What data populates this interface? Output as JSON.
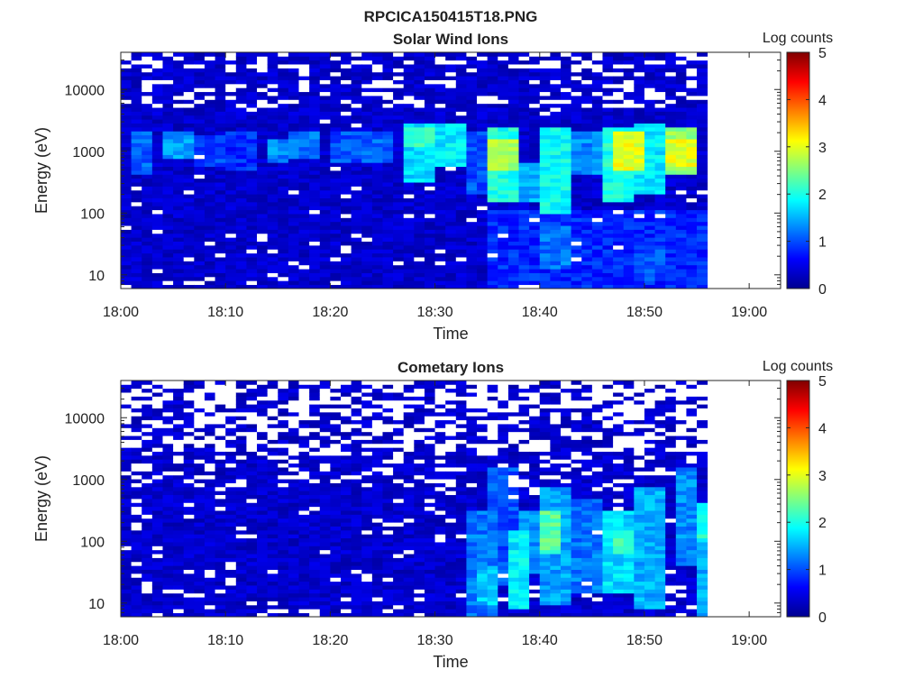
{
  "figure": {
    "title": "RPCICA150415T18.PNG"
  },
  "chart_data": [
    {
      "type": "heatmap",
      "title": "Solar Wind Ions",
      "xlabel": "Time",
      "ylabel": "Energy (eV)",
      "colorbar_label": "Log counts",
      "colorbar_ticks": [
        "0",
        "1",
        "2",
        "3",
        "4",
        "5"
      ],
      "x_ticks": [
        "18:00",
        "18:10",
        "18:20",
        "18:30",
        "18:40",
        "18:50",
        "19:00"
      ],
      "y_ticks": [
        "10",
        "100",
        "1000",
        "10000"
      ],
      "xlim": [
        "18:00",
        "19:03"
      ],
      "ylim": [
        6,
        40000
      ],
      "y_scale": "log",
      "clim": [
        0,
        5
      ],
      "data_end_time": "18:56",
      "background_level": 0.2,
      "features": [
        {
          "t0": "18:01",
          "t1": "18:02",
          "e0": 400,
          "e1": 2000,
          "level": 1.1
        },
        {
          "t0": "18:04",
          "t1": "18:06",
          "e0": 800,
          "e1": 2000,
          "level": 1.4
        },
        {
          "t0": "18:07",
          "t1": "18:09",
          "e0": 600,
          "e1": 1800,
          "level": 1.0
        },
        {
          "t0": "18:10",
          "t1": "18:12",
          "e0": 500,
          "e1": 2000,
          "level": 0.8
        },
        {
          "t0": "18:14",
          "t1": "18:15",
          "e0": 700,
          "e1": 1500,
          "level": 1.3
        },
        {
          "t0": "18:16",
          "t1": "18:18",
          "e0": 800,
          "e1": 2000,
          "level": 1.2
        },
        {
          "t0": "18:20",
          "t1": "18:22",
          "e0": 700,
          "e1": 2000,
          "level": 1.0
        },
        {
          "t0": "18:23",
          "t1": "18:25",
          "e0": 700,
          "e1": 2000,
          "level": 1.1
        },
        {
          "t0": "18:27",
          "t1": "18:29",
          "e0": 300,
          "e1": 3000,
          "level": 1.7
        },
        {
          "t0": "18:27",
          "t1": "18:29",
          "e0": 1200,
          "e1": 2500,
          "level": 2.1
        },
        {
          "t0": "18:30",
          "t1": "18:32",
          "e0": 600,
          "e1": 3000,
          "level": 1.8
        },
        {
          "t0": "18:33",
          "t1": "18:34",
          "e0": 200,
          "e1": 2000,
          "level": 1.0
        },
        {
          "t0": "18:35",
          "t1": "18:37",
          "e0": 150,
          "e1": 2500,
          "level": 2.0
        },
        {
          "t0": "18:35",
          "t1": "18:37",
          "e0": 500,
          "e1": 1500,
          "level": 2.7
        },
        {
          "t0": "18:37",
          "t1": "18:39",
          "e0": 150,
          "e1": 700,
          "level": 1.5
        },
        {
          "t0": "18:40",
          "t1": "18:42",
          "e0": 100,
          "e1": 2500,
          "level": 1.9
        },
        {
          "t0": "18:43",
          "t1": "18:45",
          "e0": 400,
          "e1": 2000,
          "level": 1.3
        },
        {
          "t0": "18:46",
          "t1": "18:48",
          "e0": 150,
          "e1": 2500,
          "level": 2.0
        },
        {
          "t0": "18:47",
          "t1": "18:49",
          "e0": 500,
          "e1": 2000,
          "level": 3.0
        },
        {
          "t0": "18:49",
          "t1": "18:51",
          "e0": 200,
          "e1": 3000,
          "level": 1.8
        },
        {
          "t0": "18:52",
          "t1": "18:54",
          "e0": 400,
          "e1": 2500,
          "level": 2.6
        },
        {
          "t0": "18:52",
          "t1": "18:54",
          "e0": 600,
          "e1": 1500,
          "level": 3.0
        },
        {
          "t0": "18:35",
          "t1": "18:56",
          "e0": 6,
          "e1": 120,
          "level": 0.8
        },
        {
          "t0": "18:40",
          "t1": "18:42",
          "e0": 12,
          "e1": 60,
          "level": 1.2
        },
        {
          "t0": "18:49",
          "t1": "18:51",
          "e0": 8,
          "e1": 30,
          "level": 1.0
        }
      ]
    },
    {
      "type": "heatmap",
      "title": "Cometary Ions",
      "xlabel": "Time",
      "ylabel": "Energy (eV)",
      "colorbar_label": "Log counts",
      "colorbar_ticks": [
        "0",
        "1",
        "2",
        "3",
        "4",
        "5"
      ],
      "x_ticks": [
        "18:00",
        "18:10",
        "18:20",
        "18:30",
        "18:40",
        "18:50",
        "19:00"
      ],
      "y_ticks": [
        "10",
        "100",
        "1000",
        "10000"
      ],
      "xlim": [
        "18:00",
        "19:03"
      ],
      "ylim": [
        6,
        40000
      ],
      "y_scale": "log",
      "clim": [
        0,
        5
      ],
      "data_end_time": "18:56",
      "background_level": 0.2,
      "features": [
        {
          "t0": "18:33",
          "t1": "18:35",
          "e0": 6,
          "e1": 300,
          "level": 1.2
        },
        {
          "t0": "18:34",
          "t1": "18:35",
          "e0": 10,
          "e1": 40,
          "level": 1.6
        },
        {
          "t0": "18:35",
          "t1": "18:37",
          "e0": 20,
          "e1": 1500,
          "level": 1.0
        },
        {
          "t0": "18:37",
          "t1": "18:38",
          "e0": 8,
          "e1": 150,
          "level": 1.8
        },
        {
          "t0": "18:38",
          "t1": "18:40",
          "e0": 30,
          "e1": 300,
          "level": 1.3
        },
        {
          "t0": "18:40",
          "t1": "18:41",
          "e0": 60,
          "e1": 300,
          "level": 2.3
        },
        {
          "t0": "18:40",
          "t1": "18:42",
          "e0": 10,
          "e1": 800,
          "level": 1.4
        },
        {
          "t0": "18:43",
          "t1": "18:45",
          "e0": 15,
          "e1": 500,
          "level": 1.2
        },
        {
          "t0": "18:46",
          "t1": "18:48",
          "e0": 15,
          "e1": 300,
          "level": 1.7
        },
        {
          "t0": "18:47",
          "t1": "18:48",
          "e0": 60,
          "e1": 150,
          "level": 2.2
        },
        {
          "t0": "18:49",
          "t1": "18:51",
          "e0": 8,
          "e1": 800,
          "level": 1.5
        },
        {
          "t0": "18:53",
          "t1": "18:54",
          "e0": 40,
          "e1": 1500,
          "level": 1.3
        },
        {
          "t0": "18:55",
          "t1": "18:56",
          "e0": 6,
          "e1": 300,
          "level": 1.5
        },
        {
          "t0": "18:55",
          "t1": "18:56",
          "e0": 100,
          "e1": 400,
          "level": 2.0
        }
      ]
    }
  ]
}
